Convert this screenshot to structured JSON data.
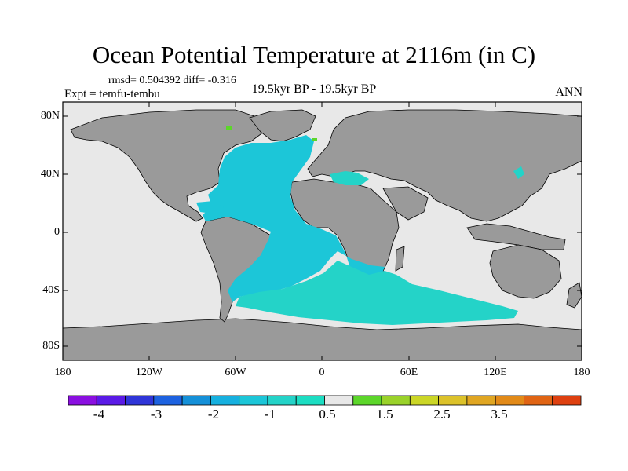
{
  "title": "Ocean Potential Temperature at 2116m (in C)",
  "stats": "rmsd= 0.504392 diff= -0.316",
  "experiment": "Expt = temfu-tembu",
  "period": "19.5kyr BP - 19.5kyr BP",
  "season": "ANN",
  "lat_labels": [
    "80N",
    "40N",
    "0",
    "40S",
    "80S"
  ],
  "lon_labels": [
    "180",
    "120W",
    "60W",
    "0",
    "60E",
    "120E",
    "180"
  ],
  "colorbar": {
    "colors": [
      "#8a0fe0",
      "#5a1ae6",
      "#2f35d8",
      "#1d62e0",
      "#1590d8",
      "#16b0df",
      "#1cc6d8",
      "#24d3c8",
      "#1cddc2",
      "#e8e8e8",
      "#5cd62a",
      "#9ad22a",
      "#cbd626",
      "#dcc22a",
      "#e0a622",
      "#e28a18",
      "#e06414",
      "#de4010"
    ],
    "labels": [
      "-4",
      "-3",
      "-2",
      "-1",
      "0.5",
      "1.5",
      "2.5",
      "3.5"
    ]
  },
  "legend_colors": {
    "land": "#9a9a9a",
    "missing": "#e8e8e8",
    "coast": "#000000"
  }
}
